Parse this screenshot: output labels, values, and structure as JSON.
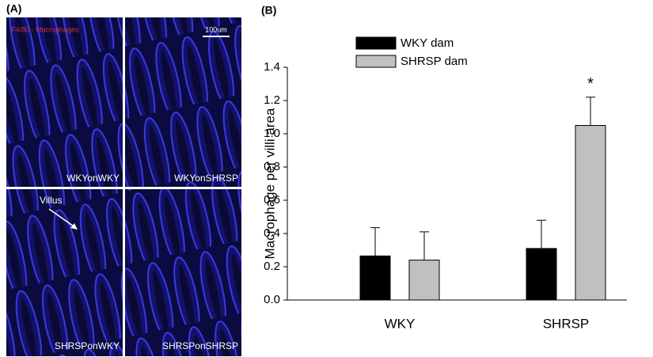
{
  "panel_a": {
    "label": "(A)",
    "stain_label": "F4/80 - Macrophages",
    "scale_bar": "100um",
    "images": [
      "WKYonWKY",
      "WKYonSHRSP",
      "SHRSPonWKY",
      "SHRSPonSHRSP"
    ],
    "annotation": "Villus"
  },
  "panel_b_label": "(B)",
  "chart_data": {
    "type": "bar",
    "ylabel": "Macrophage per villi area",
    "categories": [
      "WKY",
      "SHRSP"
    ],
    "series": [
      {
        "name": "WKY dam",
        "color": "#000000",
        "values": [
          0.265,
          0.31
        ],
        "errors": [
          0.17,
          0.17
        ]
      },
      {
        "name": "SHRSP dam",
        "color": "#c0c0c0",
        "values": [
          0.24,
          1.05
        ],
        "errors": [
          0.17,
          0.17
        ]
      }
    ],
    "ylim": [
      0,
      1.4
    ],
    "yticks": [
      {
        "value": 0,
        "label": "0.0"
      },
      0.2,
      0.4,
      0.6,
      0.8,
      {
        "value": 1,
        "label": "1.0"
      },
      1.2,
      1.4
    ],
    "annotations": [
      "*"
    ],
    "legend": "top-left"
  }
}
